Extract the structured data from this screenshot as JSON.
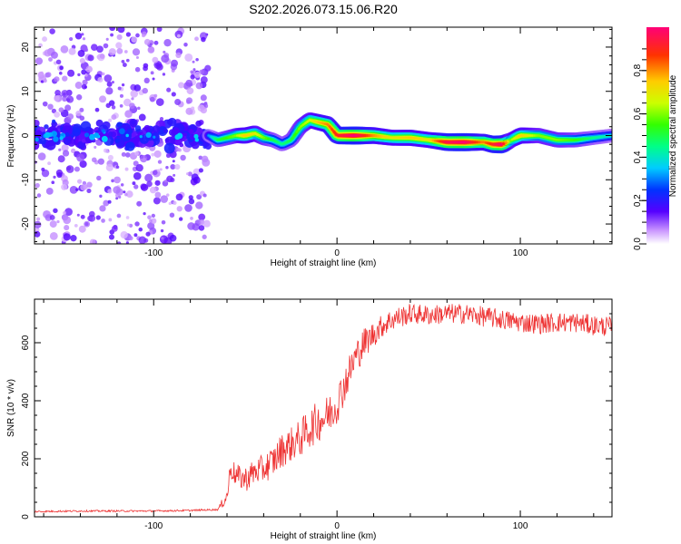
{
  "page_title": "S202.2026.073.15.06.R20",
  "chart_data": [
    {
      "id": "spectrogram",
      "type": "heatmap",
      "title": "S202.2026.073.15.06.R20",
      "xlabel": "Height of straight line (km)",
      "ylabel": "Frequency (Hz)",
      "xlim": [
        -165,
        150
      ],
      "ylim": [
        -24.5,
        24.5
      ],
      "x_ticks": [
        -100,
        0,
        100
      ],
      "y_ticks": [
        -20,
        -10,
        0,
        10,
        20
      ],
      "x_tick_labels": [
        "-100",
        "0",
        "100"
      ],
      "y_tick_labels": [
        "-20",
        "-10",
        "0",
        "10",
        "20"
      ],
      "noise_region_x": [
        -165,
        -70
      ],
      "ridge": {
        "x": [
          -70,
          -65,
          -60,
          -55,
          -50,
          -45,
          -40,
          -35,
          -30,
          -25,
          -20,
          -15,
          -10,
          -5,
          0,
          5,
          10,
          20,
          30,
          40,
          50,
          60,
          70,
          80,
          85,
          90,
          95,
          100,
          110,
          120,
          130,
          140,
          150
        ],
        "freq": [
          0,
          -1,
          -0.5,
          0,
          0,
          0.5,
          -0.5,
          -1,
          -2,
          -1,
          2,
          3.5,
          3,
          2.5,
          0,
          0,
          0,
          0,
          -0.5,
          -0.5,
          -1,
          -1.5,
          -1.5,
          -1.5,
          -2,
          -2,
          -1,
          0,
          0,
          -1,
          -1,
          -0.5,
          0
        ],
        "amplitude": [
          0.3,
          0.5,
          0.55,
          0.6,
          0.75,
          0.7,
          0.6,
          0.5,
          0.45,
          0.5,
          0.6,
          0.65,
          0.75,
          0.8,
          0.9,
          0.95,
          1.0,
          0.8,
          0.7,
          0.75,
          0.7,
          0.95,
          1.0,
          0.8,
          0.9,
          1.0,
          0.6,
          0.75,
          0.6,
          0.6,
          0.55,
          0.45,
          0.4
        ]
      },
      "colorbar": {
        "label": "Normalized spectral amplitude",
        "range": [
          0,
          1
        ],
        "ticks": [
          0.0,
          0.2,
          0.4,
          0.6,
          0.8
        ],
        "tick_labels": [
          "0.0",
          "0.2",
          "0.4",
          "0.6",
          "0.8"
        ]
      }
    },
    {
      "id": "snr",
      "type": "line",
      "xlabel": "Height of straight line (km)",
      "ylabel": "SNR (10 * v/v)",
      "xlim": [
        -165,
        150
      ],
      "ylim": [
        0,
        750
      ],
      "x_ticks": [
        -100,
        0,
        100
      ],
      "y_ticks": [
        0,
        200,
        400,
        600
      ],
      "x_tick_labels": [
        "-100",
        "0",
        "100"
      ],
      "y_tick_labels": [
        "0",
        "200",
        "400",
        "600"
      ],
      "color": "#ee3333",
      "series": [
        {
          "name": "SNR",
          "x": [
            -165,
            -140,
            -120,
            -100,
            -80,
            -65,
            -60,
            -58,
            -55,
            -50,
            -45,
            -40,
            -35,
            -30,
            -25,
            -20,
            -15,
            -10,
            -5,
            0,
            5,
            10,
            15,
            20,
            25,
            30,
            40,
            50,
            60,
            70,
            80,
            90,
            100,
            110,
            120,
            130,
            140,
            150
          ],
          "y": [
            18,
            20,
            20,
            20,
            22,
            25,
            70,
            170,
            140,
            130,
            155,
            165,
            190,
            230,
            250,
            270,
            305,
            330,
            350,
            390,
            470,
            550,
            600,
            630,
            660,
            680,
            700,
            695,
            700,
            700,
            690,
            680,
            670,
            665,
            670,
            670,
            660,
            655
          ],
          "noise": [
            3,
            3,
            3,
            3,
            3,
            3,
            30,
            40,
            40,
            45,
            45,
            50,
            55,
            60,
            60,
            65,
            70,
            70,
            70,
            70,
            65,
            60,
            55,
            45,
            40,
            40,
            35,
            35,
            35,
            35,
            35,
            35,
            35,
            35,
            35,
            35,
            35,
            35
          ]
        }
      ]
    }
  ]
}
